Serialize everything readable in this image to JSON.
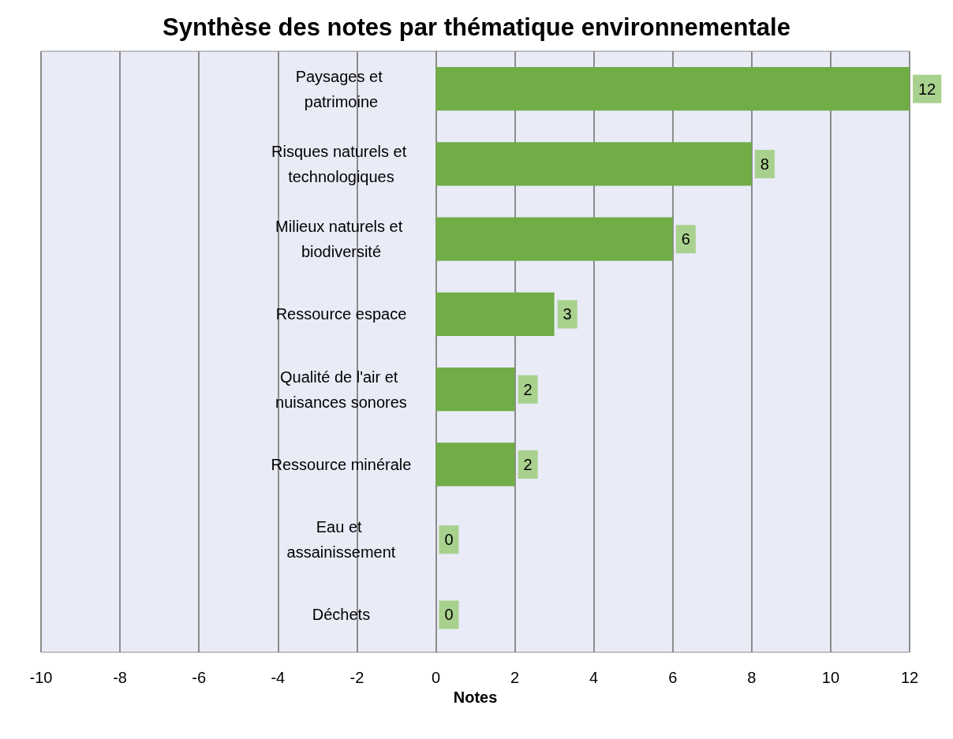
{
  "chart_data": {
    "type": "bar",
    "orientation": "horizontal",
    "title": "Synthèse des notes par thématique environnementale",
    "xlabel": "Notes",
    "categories": [
      "Paysages et patrimoine",
      "Risques naturels et technologiques",
      "Milieux naturels et biodiversité",
      "Ressource espace",
      "Qualité de l'air et nuisances sonores",
      "Ressource minérale",
      "Eau et assainissement",
      "Déchets"
    ],
    "values": [
      12,
      8,
      6,
      3,
      2,
      2,
      0,
      0
    ],
    "color": "#70ad47",
    "xlim": [
      -10,
      12
    ],
    "xticks": [
      -10,
      -8,
      -6,
      -4,
      -2,
      0,
      2,
      4,
      6,
      8,
      10,
      12
    ],
    "grid": "x",
    "data_labels": true
  }
}
